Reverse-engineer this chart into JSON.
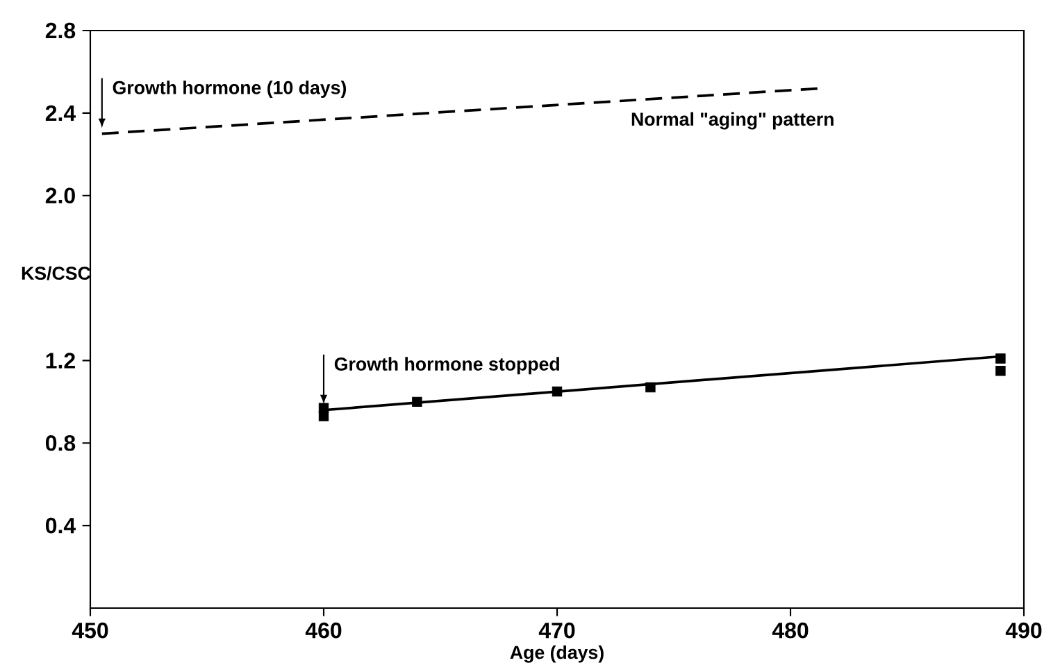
{
  "chart_data": {
    "type": "line",
    "xlabel": "Age (days)",
    "ylabel": "KS/CSC",
    "xlim": [
      450,
      490
    ],
    "ylim": [
      0,
      2.8
    ],
    "xticks": [
      450,
      460,
      470,
      480,
      490
    ],
    "yticks": [
      0.4,
      0.8,
      1.2,
      {
        "value": 2.0,
        "label": "2.0"
      },
      2.4,
      2.8
    ],
    "grid": false,
    "series": [
      {
        "name": "Normal \"aging\" pattern",
        "line_style": "dashed",
        "marker": "none",
        "color": "#000000",
        "x": [
          450.5,
          481.3
        ],
        "values": [
          2.3,
          2.52
        ]
      },
      {
        "line_style": "solid",
        "marker": "none",
        "color": "#000000",
        "x": [
          460,
          489
        ],
        "values": [
          0.96,
          1.22
        ]
      },
      {
        "type": "scatter",
        "marker": "square",
        "color": "#000000",
        "x": [
          460,
          460,
          464,
          470,
          474,
          489,
          489
        ],
        "values": [
          0.93,
          0.97,
          1.0,
          1.05,
          1.07,
          1.21,
          1.15
        ]
      }
    ],
    "annotations": [
      {
        "text": "Growth hormone (10 days)",
        "x": 450.5,
        "y": 2.3
      },
      {
        "text": "Growth hormone stopped",
        "x": 460,
        "y": 0.96
      }
    ]
  }
}
